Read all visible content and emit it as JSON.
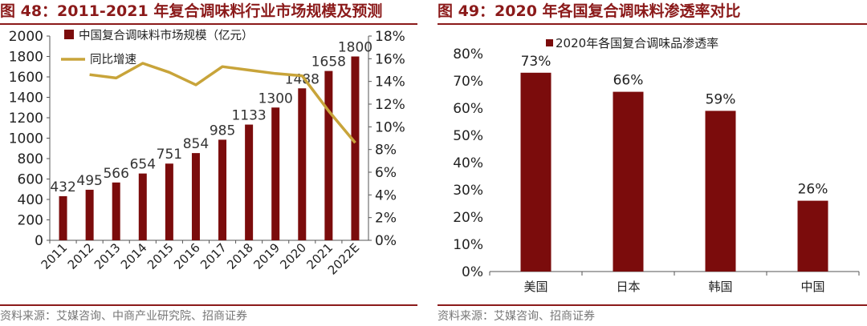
{
  "left": {
    "title": "图 48：2011-2021 年复合调味料行业市场规模及预测",
    "source": "资料来源：艾媒咨询、中商产业研究院、招商证券"
  },
  "right": {
    "title": "图 49：2020 年各国复合调味料渗透率对比",
    "source": "资料来源：艾媒咨询、招商证券"
  },
  "colors": {
    "bar": "#7B0C0C",
    "line": "#C8A43A",
    "accent": "#8B1A1A"
  },
  "chart_data": [
    {
      "type": "bar",
      "title": "2011-2021 年复合调味料行业市场规模及预测",
      "categories": [
        "2011",
        "2012",
        "2013",
        "2014",
        "2015",
        "2016",
        "2017",
        "2018",
        "2019",
        "2020",
        "2021",
        "2022E"
      ],
      "series": [
        {
          "name": "中国复合调味料市场规模（亿元）",
          "type": "bar",
          "axis": "left",
          "values": [
            432,
            495,
            566,
            654,
            751,
            854,
            985,
            1133,
            1300,
            1488,
            1658,
            1800
          ]
        },
        {
          "name": "同比增速",
          "type": "line",
          "axis": "right",
          "values": [
            null,
            14.6,
            14.3,
            15.6,
            14.8,
            13.7,
            15.3,
            15.0,
            14.7,
            14.5,
            11.4,
            8.6
          ]
        }
      ],
      "ylim": [
        0,
        2000
      ],
      "yticks": [
        0,
        200,
        400,
        600,
        800,
        1000,
        1200,
        1400,
        1600,
        1800,
        2000
      ],
      "y2lim": [
        0,
        18
      ],
      "y2ticks": [
        "0%",
        "2%",
        "4%",
        "6%",
        "8%",
        "10%",
        "12%",
        "14%",
        "16%",
        "18%"
      ]
    },
    {
      "type": "bar",
      "title": "2020 年各国复合调味料渗透率对比",
      "categories": [
        "美国",
        "日本",
        "韩国",
        "中国"
      ],
      "series": [
        {
          "name": "2020年各国复合调味品渗透率",
          "values": [
            73,
            66,
            59,
            26
          ]
        }
      ],
      "value_labels": [
        "73%",
        "66%",
        "59%",
        "26%"
      ],
      "ylim": [
        0,
        80
      ],
      "yticks": [
        "0%",
        "10%",
        "20%",
        "30%",
        "40%",
        "50%",
        "60%",
        "70%",
        "80%"
      ]
    }
  ]
}
